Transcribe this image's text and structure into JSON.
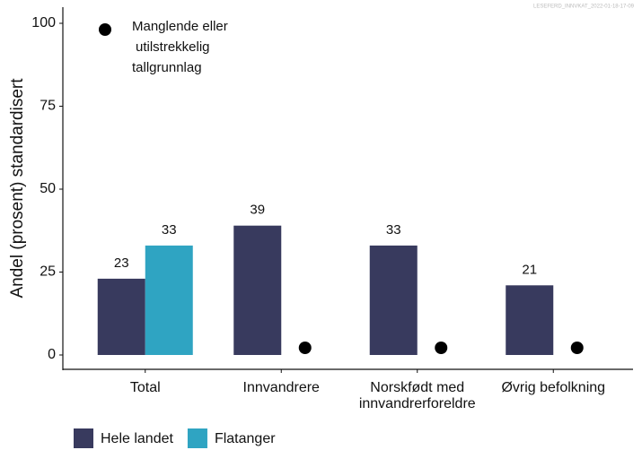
{
  "chart_data": {
    "type": "bar",
    "source": "LESEFERD_INNVKAT_2022-01-18-17-09",
    "y_label": "Andel (prosent) standardisert",
    "annotation": [
      "Manglende eller",
      "utilstrekkelig",
      "tallgrunnlag"
    ],
    "categories": [
      "Total",
      "Innvandrere",
      "Norskfødt med innvandrerforeldre",
      "Øvrig befolkning"
    ],
    "series": [
      {
        "name": "Hele landet",
        "color": "#383a5e",
        "values": [
          23,
          39,
          33,
          21
        ]
      },
      {
        "name": "Flatanger",
        "color": "#2fa4c2",
        "values": [
          33,
          null,
          null,
          null
        ]
      }
    ],
    "ylim": [
      0,
      100
    ],
    "yticks": [
      0,
      25,
      50,
      75,
      100
    ],
    "legend": "bottom"
  }
}
